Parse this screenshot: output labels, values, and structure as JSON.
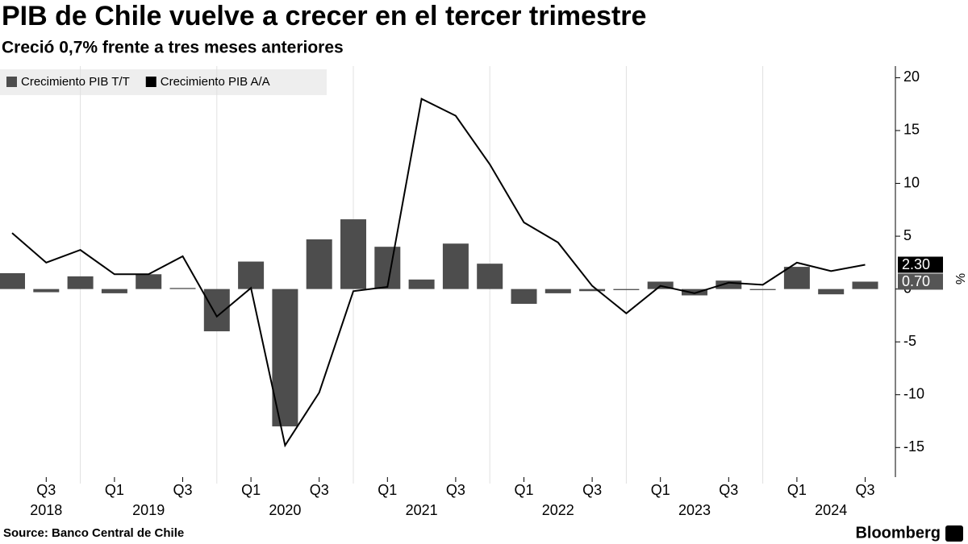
{
  "chart_data": {
    "type": "combo",
    "title": "PIB de Chile vuelve a crecer en el tercer trimestre",
    "subtitle": "Creció 0,7% frente a tres meses anteriores",
    "categories": [
      null,
      "Q3",
      null,
      "Q1",
      null,
      "Q3",
      null,
      "Q1",
      null,
      "Q3",
      null,
      "Q1",
      null,
      "Q3",
      null,
      "Q1",
      null,
      "Q3",
      null,
      "Q1",
      null,
      "Q3",
      null,
      "Q1",
      null,
      "Q3"
    ],
    "years": [
      null,
      "2018",
      null,
      null,
      "2019",
      null,
      null,
      null,
      "2020",
      null,
      null,
      null,
      "2021",
      null,
      null,
      null,
      "2022",
      null,
      null,
      null,
      "2023",
      null,
      null,
      null,
      "2024",
      null
    ],
    "series": [
      {
        "name": "Crecimiento PIB T/T",
        "type": "bar",
        "color": "#4d4d4d",
        "values": [
          1.5,
          -0.3,
          1.2,
          -0.4,
          1.4,
          0.1,
          -4.0,
          2.6,
          -13.0,
          4.7,
          6.6,
          4.0,
          0.9,
          4.3,
          2.4,
          -1.4,
          -0.4,
          -0.2,
          -0.1,
          0.7,
          -0.6,
          0.8,
          -0.1,
          2.1,
          -0.5,
          0.7
        ],
        "value_labels": [
          null,
          null,
          null,
          null,
          null,
          null,
          null,
          null,
          null,
          null,
          null,
          null,
          null,
          null,
          null,
          null,
          null,
          null,
          null,
          null,
          null,
          null,
          null,
          null,
          null,
          "0.70"
        ]
      },
      {
        "name": "Crecimiento PIB A/A",
        "type": "line",
        "color": "#000000",
        "values": [
          5.3,
          2.5,
          3.7,
          1.4,
          1.4,
          3.1,
          -2.6,
          0.1,
          -14.8,
          -9.8,
          -0.2,
          0.2,
          18.0,
          16.4,
          11.8,
          6.3,
          4.4,
          0.3,
          -2.3,
          0.3,
          -0.4,
          0.6,
          0.4,
          2.5,
          1.7,
          2.3
        ],
        "value_labels": [
          null,
          null,
          null,
          null,
          null,
          null,
          null,
          null,
          null,
          null,
          null,
          null,
          null,
          null,
          null,
          null,
          null,
          null,
          null,
          null,
          null,
          null,
          null,
          null,
          null,
          "2.30"
        ]
      }
    ],
    "ylim": [
      -17.8,
      21.1
    ],
    "yticks": [
      -15,
      -10,
      -5,
      0,
      5,
      10,
      15,
      20
    ],
    "y_label": "%",
    "source": "Source: Banco Central de Chile",
    "brand": "Bloomberg"
  }
}
